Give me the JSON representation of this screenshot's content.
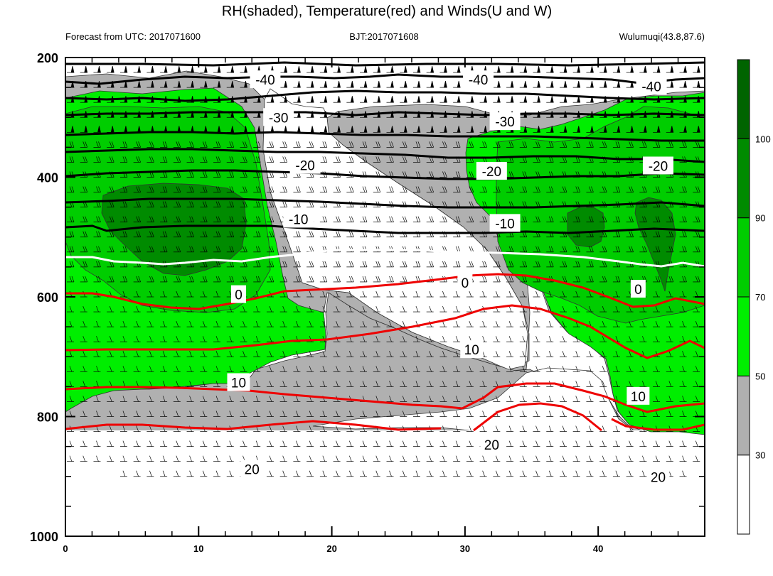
{
  "chart_data": {
    "type": "contour",
    "title": "RH(shaded), Temperature(red) and Winds(U and W)",
    "subtitle_left": "Forecast from UTC: 2017071600",
    "subtitle_center": "BJT:2017071608",
    "subtitle_right": "Wulumuqi(43.8,87.6)",
    "x_ticks": [
      "0",
      "10",
      "20",
      "30",
      "40"
    ],
    "xlim": [
      0,
      48
    ],
    "y_ticks": [
      "200",
      "400",
      "600",
      "800",
      "1000"
    ],
    "ylim": [
      200,
      1000
    ],
    "y_inverted": true,
    "colorbar": {
      "labels": [
        "100",
        "90",
        "70",
        "50",
        "30"
      ],
      "levels": [
        30,
        50,
        70,
        90,
        100
      ],
      "colors": [
        "#ffffff",
        "#b0b0b0",
        "#00ee00",
        "#00cd00",
        "#008b00",
        "#006400"
      ]
    },
    "black_contour_labels": [
      {
        "value": "-40",
        "x": 15,
        "p": 237
      },
      {
        "value": "-40",
        "x": 31,
        "p": 237
      },
      {
        "value": "-40",
        "x": 44,
        "p": 248
      },
      {
        "value": "-30",
        "x": 16,
        "p": 300
      },
      {
        "value": "-30",
        "x": 33,
        "p": 307
      },
      {
        "value": "-20",
        "x": 18,
        "p": 380
      },
      {
        "value": "-20",
        "x": 32,
        "p": 390
      },
      {
        "value": "-20",
        "x": 44.5,
        "p": 381
      },
      {
        "value": "-10",
        "x": 17.5,
        "p": 470
      },
      {
        "value": "-10",
        "x": 33,
        "p": 477
      }
    ],
    "white_contour_labels": [
      {
        "value": "0",
        "x": 13,
        "p": 596
      },
      {
        "value": "0",
        "x": 30,
        "p": 576
      },
      {
        "value": "0",
        "x": 43,
        "p": 587
      }
    ],
    "red_contour_labels": [
      {
        "value": "10",
        "x": 13,
        "p": 743
      },
      {
        "value": "10",
        "x": 30.5,
        "p": 688
      },
      {
        "value": "10",
        "x": 43,
        "p": 766
      },
      {
        "value": "20",
        "x": 14,
        "p": 888
      },
      {
        "value": "20",
        "x": 32,
        "p": 847
      },
      {
        "value": "20",
        "x": 44.5,
        "p": 901
      }
    ]
  }
}
